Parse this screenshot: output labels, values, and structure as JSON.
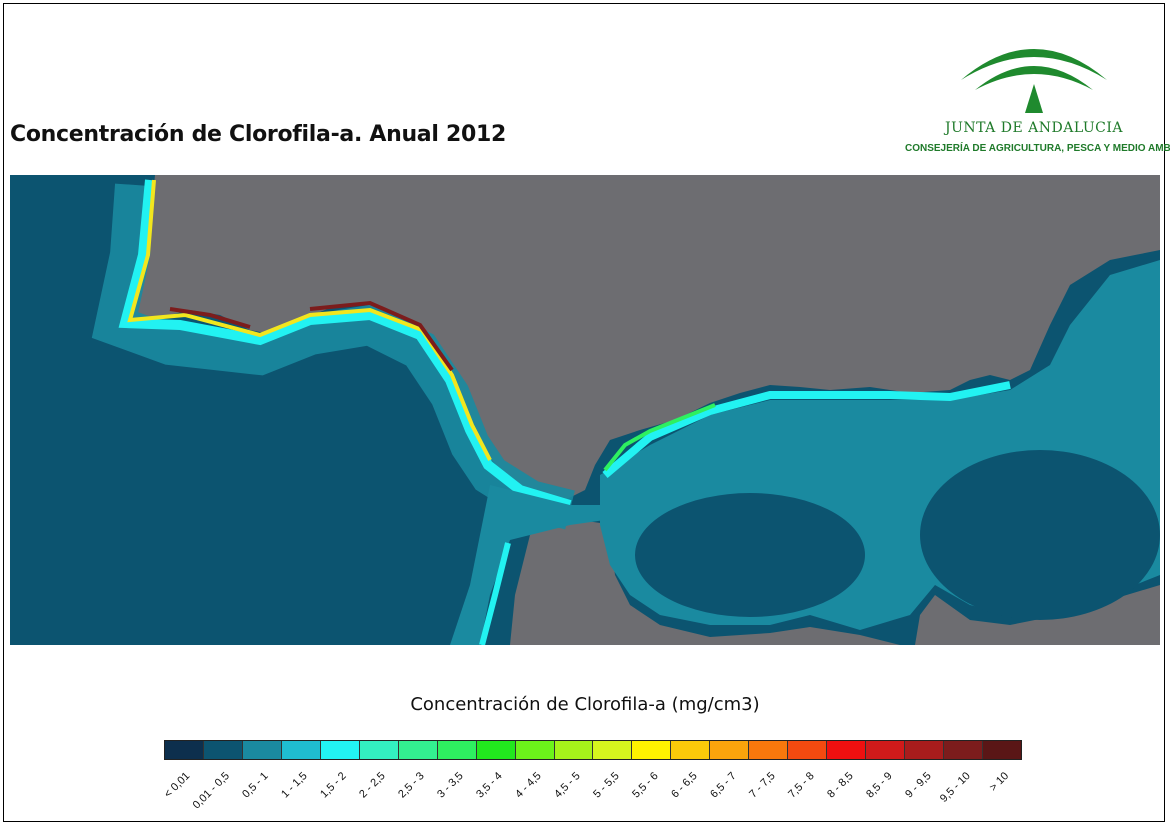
{
  "title": "Concentración de Clorofila-a. Anual 2012",
  "logo": {
    "name": "JUNTA DE ANDALUCIA",
    "department": "CONSEJERÍA DE AGRICULTURA, PESCA Y MEDIO AMBIENTE"
  },
  "colors": {
    "ocean_deep": "#0c5470",
    "ocean_mid": "#1a8aa0",
    "ocean_light": "#1fbcd0",
    "land": "#6d6d71",
    "brand_green": "#1f7a2a"
  },
  "legend": {
    "title": "Concentración de Clorofila-a (mg/cm3)",
    "classes": [
      {
        "label": "< 0,01",
        "color": "#0d2f4d"
      },
      {
        "label": "0,01 - 0,5",
        "color": "#0c5470"
      },
      {
        "label": "0,5 - 1",
        "color": "#1a8aa0"
      },
      {
        "label": "1 - 1,5",
        "color": "#1fbcd0"
      },
      {
        "label": "1,5 - 2",
        "color": "#22f2f2"
      },
      {
        "label": "2 - 2,5",
        "color": "#33f0c0"
      },
      {
        "label": "2,5 - 3",
        "color": "#33f090"
      },
      {
        "label": "3 - 3,5",
        "color": "#2ef060"
      },
      {
        "label": "3,5 - 4",
        "color": "#22e81e"
      },
      {
        "label": "4 - 4,5",
        "color": "#6cf21a"
      },
      {
        "label": "4,5 - 5",
        "color": "#a6f21a"
      },
      {
        "label": "5 - 5,5",
        "color": "#d6f51e"
      },
      {
        "label": "5,5 - 6",
        "color": "#fff200"
      },
      {
        "label": "6 - 6,5",
        "color": "#fcc90a"
      },
      {
        "label": "6,5 - 7",
        "color": "#fba40c"
      },
      {
        "label": "7 - 7,5",
        "color": "#f8780c"
      },
      {
        "label": "7,5 - 8",
        "color": "#f44a10"
      },
      {
        "label": "8 - 8,5",
        "color": "#f01010"
      },
      {
        "label": "8,5 - 9",
        "color": "#d01a1a"
      },
      {
        "label": "9 - 9,5",
        "color": "#a81c1c"
      },
      {
        "label": "9,5 - 10",
        "color": "#7c1c1c"
      },
      {
        "label": "> 10",
        "color": "#5a1616"
      }
    ]
  }
}
